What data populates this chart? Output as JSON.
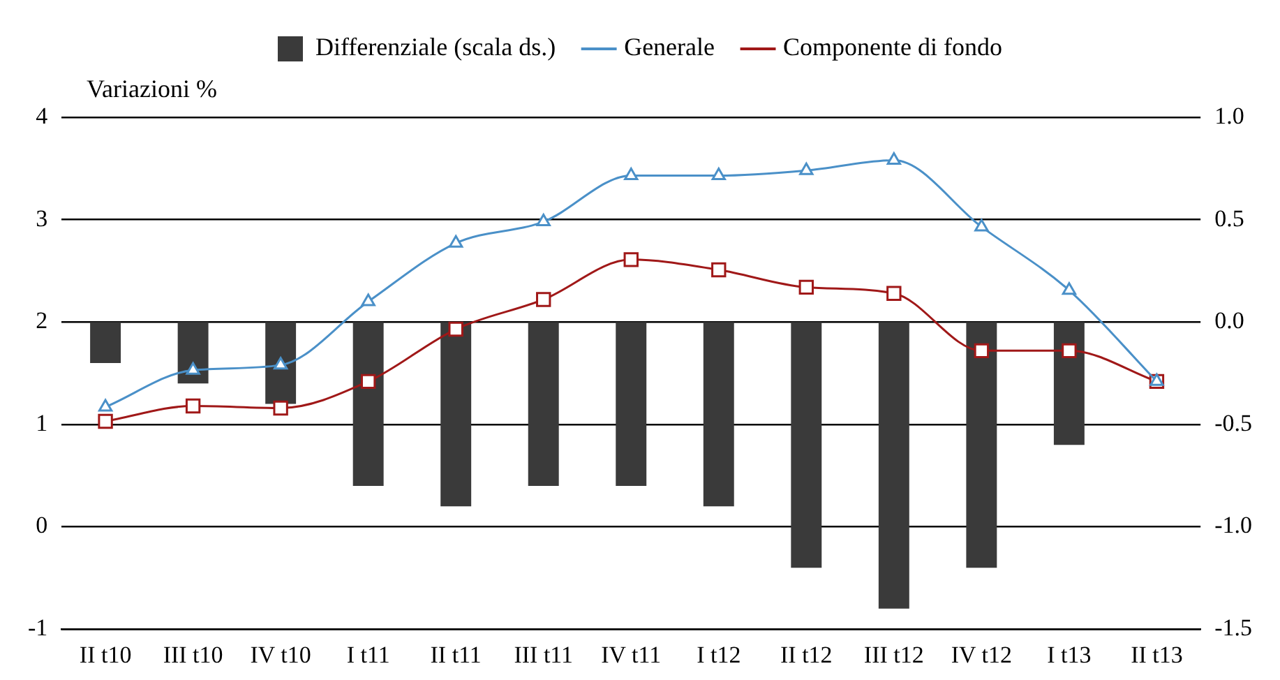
{
  "chart_data": {
    "type": "bar",
    "ylabel": "Variazioni %",
    "categories": [
      "II t10",
      "III t10",
      "IV t10",
      "I t11",
      "II t11",
      "III t11",
      "IV t11",
      "I t12",
      "II t12",
      "III t12",
      "IV t12",
      "I t13",
      "II t13"
    ],
    "series": [
      {
        "name": "Differenziale (scala ds.)",
        "axis": "y2",
        "color": "#3a3a3a",
        "values": [
          -0.2,
          -0.3,
          -0.4,
          -0.8,
          -0.9,
          -0.8,
          -0.8,
          -0.9,
          -1.2,
          -1.4,
          -1.2,
          -0.6,
          null
        ]
      },
      {
        "name": "Generale",
        "type": "line",
        "color": "#4a90c8",
        "marker": "triangle",
        "values": [
          1.17,
          1.53,
          1.58,
          2.2,
          2.77,
          2.98,
          3.43,
          3.43,
          3.48,
          3.58,
          2.93,
          2.31,
          1.42
        ]
      },
      {
        "name": "Componente di fondo",
        "type": "line",
        "color": "#a01818",
        "marker": "square",
        "values": [
          1.03,
          1.18,
          1.16,
          1.42,
          1.93,
          2.22,
          2.61,
          2.51,
          2.34,
          2.28,
          1.72,
          1.72,
          1.42
        ]
      }
    ],
    "ylim": [
      -1,
      4
    ],
    "yticks": [
      -1,
      0,
      1,
      2,
      3,
      4
    ],
    "y2lim": [
      -1.5,
      1
    ],
    "y2ticks": [
      {
        "value": -1.5,
        "label": "-1.5"
      },
      {
        "value": -1,
        "label": "-1.0"
      },
      {
        "value": -0.5,
        "label": "-0.5"
      },
      {
        "value": 0,
        "label": "0.0"
      },
      {
        "value": 0.5,
        "label": "0.5"
      },
      {
        "value": 1,
        "label": "1.0"
      }
    ],
    "grid": "y",
    "legend": "top"
  }
}
